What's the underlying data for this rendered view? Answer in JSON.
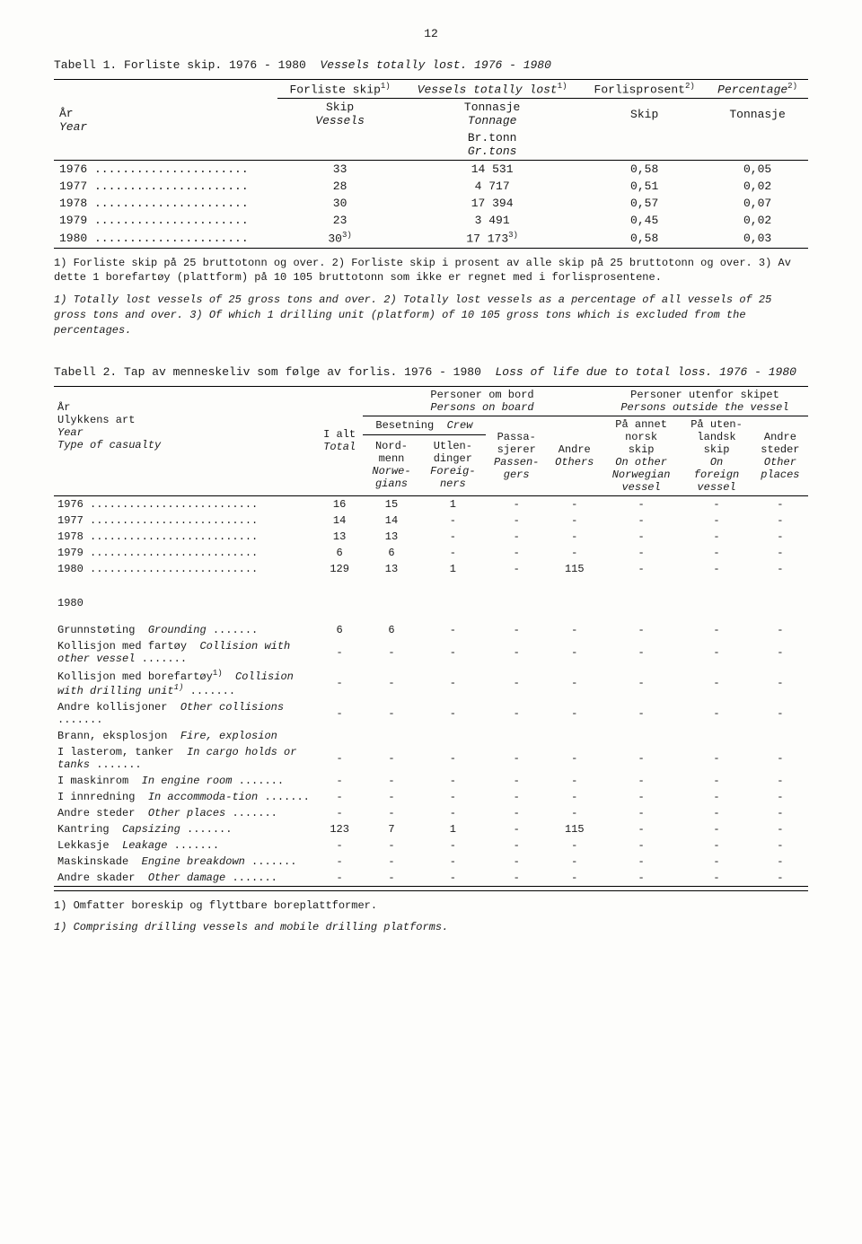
{
  "page_number": "12",
  "table1": {
    "title_no": "Tabell 1.  Forliste skip.  1976 - 1980",
    "title_en": "Vessels totally lost.  1976 - 1980",
    "headers": {
      "year_no": "År",
      "year_en": "Year",
      "forliste_skip": "Forliste skip",
      "vessels_lost": "Vessels totally lost",
      "forlisprosent": "Forlisprosent",
      "percentage": "Percentage",
      "skip": "Skip",
      "vessels": "Vessels",
      "tonnasje": "Tonnasje",
      "tonnage": "Tonnage",
      "brtonn": "Br.tonn",
      "grtons": "Gr.tons",
      "sup1": "1)",
      "sup2": "2)",
      "sup3": "3)"
    },
    "rows": [
      {
        "year": "1976",
        "skip": "33",
        "tonn": "14 531",
        "pskip": "0,58",
        "ptonn": "0,05"
      },
      {
        "year": "1977",
        "skip": "28",
        "tonn": "4 717",
        "pskip": "0,51",
        "ptonn": "0,02"
      },
      {
        "year": "1978",
        "skip": "30",
        "tonn": "17 394",
        "pskip": "0,57",
        "ptonn": "0,07"
      },
      {
        "year": "1979",
        "skip": "23",
        "tonn": "3 491",
        "pskip": "0,45",
        "ptonn": "0,02"
      },
      {
        "year": "1980",
        "skip": "30",
        "skip_sup": "3)",
        "tonn": "17 173",
        "tonn_sup": "3)",
        "pskip": "0,58",
        "ptonn": "0,03"
      }
    ],
    "footnote_no": "1) Forliste skip på 25 bruttotonn og over.  2) Forliste skip i prosent av alle skip på 25 bruttotonn og over.  3) Av dette 1 borefartøy (plattform) på 10 105 bruttotonn som ikke er regnet med i forlisprosentene.",
    "footnote_en": "1) Totally lost vessels of 25 gross tons and over.  2) Totally lost vessels as a percentage of all vessels of 25 gross tons and over.  3) Of which 1 drilling unit (platform) of 10 105 gross tons which is excluded from the percentages."
  },
  "table2": {
    "title_no": "Tabell 2.  Tap av menneskeliv som følge av forlis.  1976 - 1980",
    "title_en": "Loss of life due to total loss.  1976 - 1980",
    "headers": {
      "year_no": "År",
      "ulykkens": "Ulykkens art",
      "year_en": "Year",
      "type": "Type of casualty",
      "ialt": "I alt",
      "total": "Total",
      "persons_on_board_no": "Personer om bord",
      "persons_on_board_en": "Persons on board",
      "persons_outside_no": "Personer utenfor skipet",
      "persons_outside_en": "Persons outside the vessel",
      "besetning": "Besetning",
      "crew": "Crew",
      "nordmenn": "Nord-\nmenn",
      "norwegians": "Norwe-\ngians",
      "utlendinger": "Utlen-\ndinger",
      "foreigners": "Foreig-\nners",
      "passasjerer": "Passa-\nsjerer",
      "passengers": "Passen-\ngers",
      "andre": "Andre",
      "others": "Others",
      "pa_annet_no": "På annet\nnorsk\nskip",
      "pa_annet_en": "On other\nNorwegian\nvessel",
      "pa_uten_no": "På uten-\nlandsk\nskip",
      "pa_uten_en": "On\nforeign\nvessel",
      "andre_steder_no": "Andre\nsteder",
      "andre_steder_en": "Other\nplaces"
    },
    "year_rows": [
      {
        "year": "1976",
        "ialt": "16",
        "nord": "15",
        "utlen": "1",
        "pass": "-",
        "andre": "-",
        "c6": "-",
        "c7": "-",
        "c8": "-"
      },
      {
        "year": "1977",
        "ialt": "14",
        "nord": "14",
        "utlen": "-",
        "pass": "-",
        "andre": "-",
        "c6": "-",
        "c7": "-",
        "c8": "-"
      },
      {
        "year": "1978",
        "ialt": "13",
        "nord": "13",
        "utlen": "-",
        "pass": "-",
        "andre": "-",
        "c6": "-",
        "c7": "-",
        "c8": "-"
      },
      {
        "year": "1979",
        "ialt": "6",
        "nord": "6",
        "utlen": "-",
        "pass": "-",
        "andre": "-",
        "c6": "-",
        "c7": "-",
        "c8": "-"
      },
      {
        "year": "1980",
        "ialt": "129",
        "nord": "13",
        "utlen": "1",
        "pass": "-",
        "andre": "115",
        "c6": "-",
        "c7": "-",
        "c8": "-"
      }
    ],
    "year_section_label": "1980",
    "casualty_rows": [
      {
        "no": "Grunnstøting",
        "en": "Grounding",
        "ialt": "6",
        "nord": "6",
        "utlen": "-",
        "pass": "-",
        "andre": "-",
        "c6": "-",
        "c7": "-",
        "c8": "-"
      },
      {
        "no": "Kollisjon med fartøy",
        "en": "Collision with other vessel",
        "ialt": "-",
        "nord": "-",
        "utlen": "-",
        "pass": "-",
        "andre": "-",
        "c6": "-",
        "c7": "-",
        "c8": "-"
      },
      {
        "no": "Kollisjon med borefartøy",
        "no_sup": "1)",
        "en": "Collision with drilling unit",
        "en_sup": "1)",
        "ialt": "-",
        "nord": "-",
        "utlen": "-",
        "pass": "-",
        "andre": "-",
        "c6": "-",
        "c7": "-",
        "c8": "-"
      },
      {
        "no": "Andre kollisjoner",
        "en": "Other collisions",
        "ialt": "-",
        "nord": "-",
        "utlen": "-",
        "pass": "-",
        "andre": "-",
        "c6": "-",
        "c7": "-",
        "c8": "-"
      },
      {
        "no": "Brann, eksplosjon",
        "en": "Fire, explosion",
        "header_only": true
      },
      {
        "no": "I lasterom, tanker",
        "en": "In cargo holds or tanks",
        "indent": true,
        "ialt": "-",
        "nord": "-",
        "utlen": "-",
        "pass": "-",
        "andre": "-",
        "c6": "-",
        "c7": "-",
        "c8": "-"
      },
      {
        "no": "I maskinrom",
        "en": "In engine room",
        "indent": true,
        "ialt": "-",
        "nord": "-",
        "utlen": "-",
        "pass": "-",
        "andre": "-",
        "c6": "-",
        "c7": "-",
        "c8": "-"
      },
      {
        "no": "I innredning",
        "en": "In accommoda-tion",
        "indent": true,
        "ialt": "-",
        "nord": "-",
        "utlen": "-",
        "pass": "-",
        "andre": "-",
        "c6": "-",
        "c7": "-",
        "c8": "-"
      },
      {
        "no": "Andre steder",
        "en": "Other places",
        "indent": true,
        "ialt": "-",
        "nord": "-",
        "utlen": "-",
        "pass": "-",
        "andre": "-",
        "c6": "-",
        "c7": "-",
        "c8": "-"
      },
      {
        "no": "Kantring",
        "en": "Capsizing",
        "ialt": "123",
        "nord": "7",
        "utlen": "1",
        "pass": "-",
        "andre": "115",
        "c6": "-",
        "c7": "-",
        "c8": "-"
      },
      {
        "no": "Lekkasje",
        "en": "Leakage",
        "ialt": "-",
        "nord": "-",
        "utlen": "-",
        "pass": "-",
        "andre": "-",
        "c6": "-",
        "c7": "-",
        "c8": "-"
      },
      {
        "no": "Maskinskade",
        "en": "Engine breakdown",
        "ialt": "-",
        "nord": "-",
        "utlen": "-",
        "pass": "-",
        "andre": "-",
        "c6": "-",
        "c7": "-",
        "c8": "-"
      },
      {
        "no": "Andre skader",
        "en": "Other damage",
        "ialt": "-",
        "nord": "-",
        "utlen": "-",
        "pass": "-",
        "andre": "-",
        "c6": "-",
        "c7": "-",
        "c8": "-"
      }
    ],
    "footnote_no": "1) Omfatter boreskip og flyttbare boreplattformer.",
    "footnote_en": "1) Comprising drilling vessels and mobile drilling platforms."
  }
}
